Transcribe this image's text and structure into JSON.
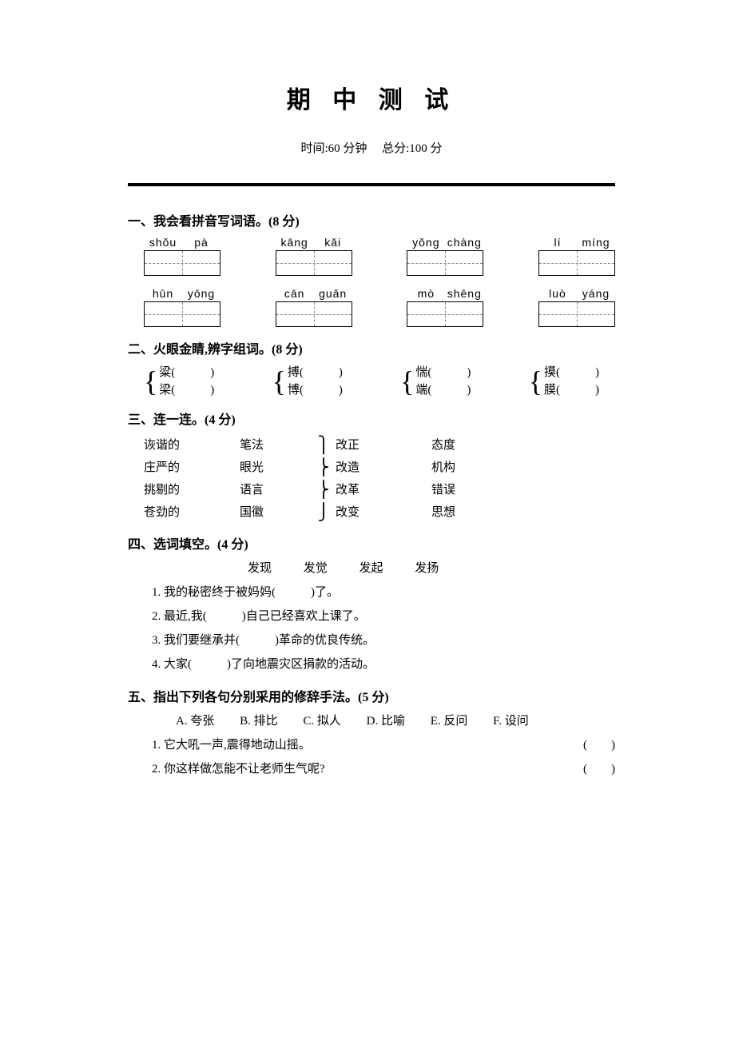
{
  "title": "期 中 测 试",
  "subtitle_time": "时间:60 分钟",
  "subtitle_score": "总分:100 分",
  "s1": {
    "header": "一、我会看拼音写词语。(8 分)",
    "row1": [
      {
        "a": "shǒu",
        "b": "pà"
      },
      {
        "a": "kāng",
        "b": "kǎi"
      },
      {
        "a": "yǒng",
        "b": "chàng"
      },
      {
        "a": "lí",
        "b": "míng"
      }
    ],
    "row2": [
      {
        "a": "hūn",
        "b": "yōng"
      },
      {
        "a": "cān",
        "b": "guǎn"
      },
      {
        "a": "mò",
        "b": "shēng"
      },
      {
        "a": "luò",
        "b": "yáng"
      }
    ]
  },
  "s2": {
    "header": "二、火眼金睛,辨字组词。(8 分)",
    "pairs": [
      {
        "a": "粱",
        "b": "梁"
      },
      {
        "a": "搏",
        "b": "博"
      },
      {
        "a": "惴",
        "b": "端"
      },
      {
        "a": "摸",
        "b": "膜"
      }
    ]
  },
  "s3": {
    "header": "三、连一连。(4 分)",
    "rows": [
      {
        "c1": "诙谐的",
        "c2": "笔法",
        "c3": "改正",
        "c4": "态度"
      },
      {
        "c1": "庄严的",
        "c2": "眼光",
        "c3": "改造",
        "c4": "机构"
      },
      {
        "c1": "挑剔的",
        "c2": "语言",
        "c3": "改革",
        "c4": "错误"
      },
      {
        "c1": "苍劲的",
        "c2": "国徽",
        "c3": "改变",
        "c4": "思想"
      }
    ]
  },
  "s4": {
    "header": "四、选词填空。(4 分)",
    "opts": [
      "发现",
      "发觉",
      "发起",
      "发扬"
    ],
    "q1a": "1. 我的秘密终于被妈妈(",
    "q1b": ")了。",
    "q2a": "2. 最近,我(",
    "q2b": ")自己已经喜欢上课了。",
    "q3a": "3. 我们要继承并(",
    "q3b": ")革命的优良传统。",
    "q4a": "4. 大家(",
    "q4b": ")了向地震灾区捐款的活动。"
  },
  "s5": {
    "header": "五、指出下列各句分别采用的修辞手法。(5 分)",
    "opts": [
      "A. 夸张",
      "B. 排比",
      "C. 拟人",
      "D. 比喻",
      "E. 反问",
      "F. 设问"
    ],
    "q1": "1. 它大吼一声,震得地动山摇。",
    "q2": "2. 你这样做怎能不让老师生气呢?",
    "paren": "(　　)"
  }
}
